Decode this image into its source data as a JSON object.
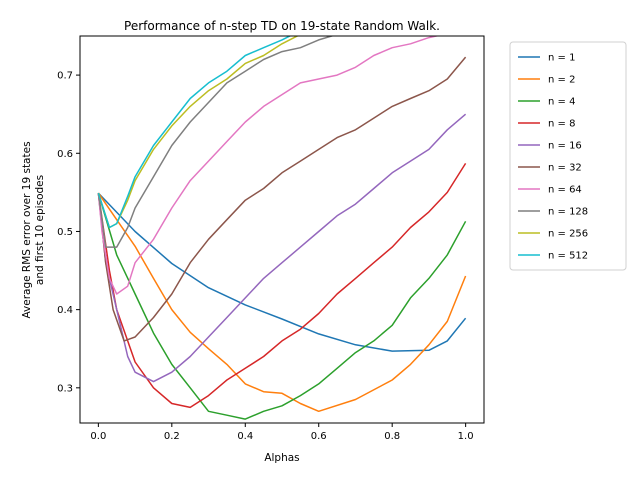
{
  "chart_data": {
    "type": "line",
    "title": "Performance of n-step TD on 19-state Random Walk.",
    "xlabel": "Alphas",
    "ylabel_lines": [
      "Average RMS error over 19 states",
      "and first 10 episodes"
    ],
    "xlim": [
      -0.05,
      1.05
    ],
    "ylim": [
      0.255,
      0.75
    ],
    "xticks": [
      0.0,
      0.2,
      0.4,
      0.6,
      0.8,
      1.0
    ],
    "xtick_labels": [
      "0.0",
      "0.2",
      "0.4",
      "0.6",
      "0.8",
      "1.0"
    ],
    "yticks": [
      0.3,
      0.4,
      0.5,
      0.6,
      0.7
    ],
    "ytick_labels": [
      "0.3",
      "0.4",
      "0.5",
      "0.6",
      "0.7"
    ],
    "grid": false,
    "legend_position": "outside-right",
    "series": [
      {
        "name": "n = 1",
        "color": "#1f77b4",
        "points": [
          [
            0.0,
            0.549
          ],
          [
            0.1,
            0.5
          ],
          [
            0.2,
            0.459
          ],
          [
            0.3,
            0.428
          ],
          [
            0.4,
            0.406
          ],
          [
            0.5,
            0.388
          ],
          [
            0.6,
            0.369
          ],
          [
            0.7,
            0.355
          ],
          [
            0.8,
            0.347
          ],
          [
            0.9,
            0.348
          ],
          [
            0.95,
            0.36
          ],
          [
            1.0,
            0.389
          ]
        ]
      },
      {
        "name": "n = 2",
        "color": "#ff7f0e",
        "points": [
          [
            0.0,
            0.549
          ],
          [
            0.05,
            0.515
          ],
          [
            0.1,
            0.481
          ],
          [
            0.15,
            0.44
          ],
          [
            0.2,
            0.4
          ],
          [
            0.25,
            0.371
          ],
          [
            0.3,
            0.35
          ],
          [
            0.35,
            0.33
          ],
          [
            0.4,
            0.305
          ],
          [
            0.45,
            0.295
          ],
          [
            0.5,
            0.293
          ],
          [
            0.55,
            0.28
          ],
          [
            0.6,
            0.27
          ],
          [
            0.7,
            0.285
          ],
          [
            0.8,
            0.31
          ],
          [
            0.85,
            0.33
          ],
          [
            0.9,
            0.355
          ],
          [
            0.95,
            0.385
          ],
          [
            1.0,
            0.443
          ]
        ]
      },
      {
        "name": "n = 4",
        "color": "#2ca02c",
        "points": [
          [
            0.0,
            0.549
          ],
          [
            0.05,
            0.47
          ],
          [
            0.1,
            0.42
          ],
          [
            0.15,
            0.37
          ],
          [
            0.2,
            0.33
          ],
          [
            0.25,
            0.3
          ],
          [
            0.3,
            0.27
          ],
          [
            0.35,
            0.265
          ],
          [
            0.4,
            0.26
          ],
          [
            0.45,
            0.27
          ],
          [
            0.5,
            0.277
          ],
          [
            0.55,
            0.29
          ],
          [
            0.6,
            0.305
          ],
          [
            0.65,
            0.325
          ],
          [
            0.7,
            0.345
          ],
          [
            0.75,
            0.36
          ],
          [
            0.8,
            0.38
          ],
          [
            0.85,
            0.415
          ],
          [
            0.9,
            0.44
          ],
          [
            0.95,
            0.47
          ],
          [
            1.0,
            0.513
          ]
        ]
      },
      {
        "name": "n = 8",
        "color": "#d62728",
        "points": [
          [
            0.0,
            0.549
          ],
          [
            0.03,
            0.45
          ],
          [
            0.05,
            0.4
          ],
          [
            0.1,
            0.333
          ],
          [
            0.15,
            0.3
          ],
          [
            0.2,
            0.28
          ],
          [
            0.25,
            0.275
          ],
          [
            0.3,
            0.29
          ],
          [
            0.35,
            0.31
          ],
          [
            0.4,
            0.325
          ],
          [
            0.45,
            0.34
          ],
          [
            0.5,
            0.36
          ],
          [
            0.55,
            0.375
          ],
          [
            0.6,
            0.395
          ],
          [
            0.65,
            0.42
          ],
          [
            0.7,
            0.44
          ],
          [
            0.75,
            0.46
          ],
          [
            0.8,
            0.48
          ],
          [
            0.85,
            0.505
          ],
          [
            0.9,
            0.525
          ],
          [
            0.95,
            0.55
          ],
          [
            1.0,
            0.587
          ]
        ]
      },
      {
        "name": "n = 16",
        "color": "#9467bd",
        "points": [
          [
            0.0,
            0.549
          ],
          [
            0.02,
            0.46
          ],
          [
            0.05,
            0.4
          ],
          [
            0.08,
            0.34
          ],
          [
            0.1,
            0.32
          ],
          [
            0.15,
            0.308
          ],
          [
            0.2,
            0.32
          ],
          [
            0.25,
            0.34
          ],
          [
            0.3,
            0.365
          ],
          [
            0.35,
            0.39
          ],
          [
            0.4,
            0.415
          ],
          [
            0.45,
            0.44
          ],
          [
            0.5,
            0.46
          ],
          [
            0.55,
            0.48
          ],
          [
            0.6,
            0.5
          ],
          [
            0.65,
            0.52
          ],
          [
            0.7,
            0.535
          ],
          [
            0.75,
            0.555
          ],
          [
            0.8,
            0.575
          ],
          [
            0.85,
            0.59
          ],
          [
            0.9,
            0.605
          ],
          [
            0.95,
            0.63
          ],
          [
            1.0,
            0.65
          ]
        ]
      },
      {
        "name": "n = 32",
        "color": "#8c564b",
        "points": [
          [
            0.0,
            0.549
          ],
          [
            0.02,
            0.46
          ],
          [
            0.04,
            0.4
          ],
          [
            0.07,
            0.36
          ],
          [
            0.1,
            0.365
          ],
          [
            0.12,
            0.375
          ],
          [
            0.15,
            0.39
          ],
          [
            0.2,
            0.42
          ],
          [
            0.25,
            0.46
          ],
          [
            0.3,
            0.49
          ],
          [
            0.35,
            0.515
          ],
          [
            0.4,
            0.54
          ],
          [
            0.45,
            0.555
          ],
          [
            0.5,
            0.575
          ],
          [
            0.55,
            0.59
          ],
          [
            0.6,
            0.605
          ],
          [
            0.65,
            0.62
          ],
          [
            0.7,
            0.63
          ],
          [
            0.75,
            0.645
          ],
          [
            0.8,
            0.66
          ],
          [
            0.85,
            0.67
          ],
          [
            0.9,
            0.68
          ],
          [
            0.95,
            0.695
          ],
          [
            1.0,
            0.723
          ]
        ]
      },
      {
        "name": "n = 64",
        "color": "#e377c2",
        "points": [
          [
            0.0,
            0.549
          ],
          [
            0.01,
            0.5
          ],
          [
            0.03,
            0.44
          ],
          [
            0.05,
            0.42
          ],
          [
            0.08,
            0.43
          ],
          [
            0.1,
            0.46
          ],
          [
            0.15,
            0.49
          ],
          [
            0.2,
            0.53
          ],
          [
            0.25,
            0.565
          ],
          [
            0.3,
            0.59
          ],
          [
            0.35,
            0.615
          ],
          [
            0.4,
            0.64
          ],
          [
            0.45,
            0.66
          ],
          [
            0.5,
            0.675
          ],
          [
            0.55,
            0.69
          ],
          [
            0.6,
            0.695
          ],
          [
            0.65,
            0.7
          ],
          [
            0.7,
            0.71
          ],
          [
            0.75,
            0.725
          ],
          [
            0.8,
            0.735
          ],
          [
            0.85,
            0.74
          ],
          [
            0.9,
            0.748
          ],
          [
            0.94,
            0.752
          ]
        ]
      },
      {
        "name": "n = 128",
        "color": "#7f7f7f",
        "points": [
          [
            0.0,
            0.549
          ],
          [
            0.02,
            0.48
          ],
          [
            0.05,
            0.48
          ],
          [
            0.08,
            0.505
          ],
          [
            0.1,
            0.53
          ],
          [
            0.15,
            0.57
          ],
          [
            0.2,
            0.61
          ],
          [
            0.25,
            0.64
          ],
          [
            0.3,
            0.665
          ],
          [
            0.35,
            0.69
          ],
          [
            0.4,
            0.705
          ],
          [
            0.45,
            0.72
          ],
          [
            0.5,
            0.73
          ],
          [
            0.55,
            0.735
          ],
          [
            0.6,
            0.745
          ],
          [
            0.65,
            0.752
          ]
        ]
      },
      {
        "name": "n = 256",
        "color": "#bcbd22",
        "points": [
          [
            0.0,
            0.549
          ],
          [
            0.03,
            0.505
          ],
          [
            0.05,
            0.51
          ],
          [
            0.08,
            0.54
          ],
          [
            0.1,
            0.565
          ],
          [
            0.15,
            0.605
          ],
          [
            0.2,
            0.635
          ],
          [
            0.25,
            0.66
          ],
          [
            0.3,
            0.68
          ],
          [
            0.35,
            0.695
          ],
          [
            0.4,
            0.715
          ],
          [
            0.45,
            0.725
          ],
          [
            0.5,
            0.74
          ],
          [
            0.55,
            0.752
          ]
        ]
      },
      {
        "name": "n = 512",
        "color": "#17becf",
        "points": [
          [
            0.0,
            0.549
          ],
          [
            0.03,
            0.505
          ],
          [
            0.05,
            0.51
          ],
          [
            0.08,
            0.545
          ],
          [
            0.1,
            0.57
          ],
          [
            0.15,
            0.61
          ],
          [
            0.2,
            0.64
          ],
          [
            0.25,
            0.67
          ],
          [
            0.3,
            0.69
          ],
          [
            0.35,
            0.705
          ],
          [
            0.4,
            0.725
          ],
          [
            0.45,
            0.735
          ],
          [
            0.5,
            0.745
          ],
          [
            0.53,
            0.752
          ]
        ]
      }
    ]
  }
}
